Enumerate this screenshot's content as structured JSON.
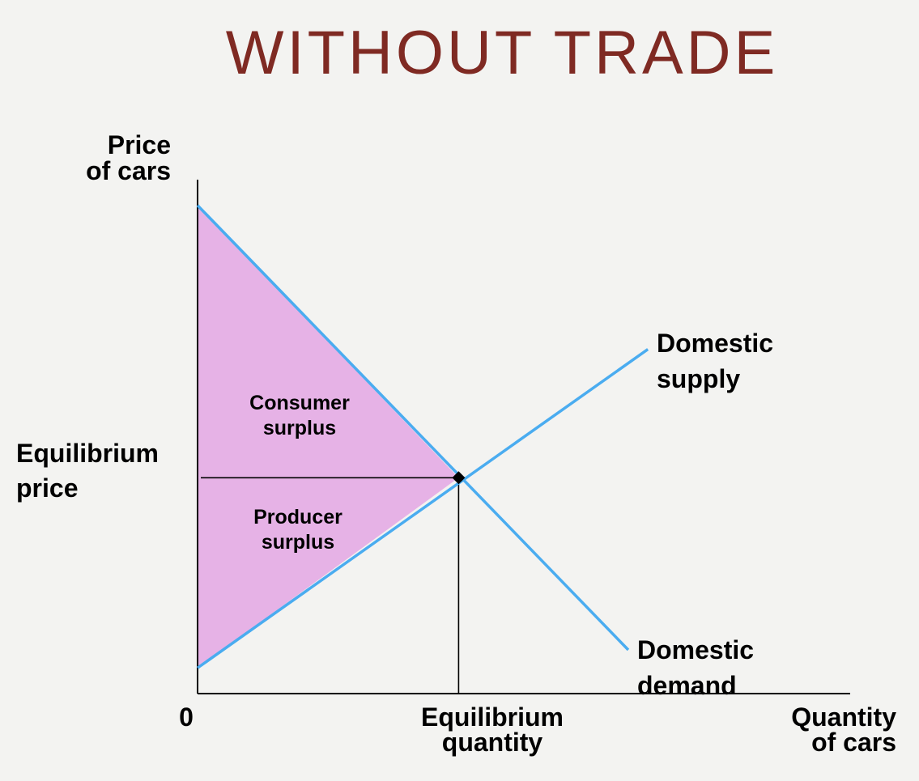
{
  "page": {
    "title": "WITHOUT TRADE",
    "title_color": "#7f2a23"
  },
  "chart_data": {
    "type": "area",
    "title": "WITHOUT TRADE",
    "ylabel": [
      "Price",
      "of cars"
    ],
    "xlabel": [
      "Quantity",
      "of cars"
    ],
    "origin_label": "0",
    "x_tick_label": [
      "Equilibrium",
      "quantity"
    ],
    "y_tick_label": [
      "Equilibrium",
      "price"
    ],
    "xlim": [
      0,
      10
    ],
    "ylim": [
      0,
      10
    ],
    "equilibrium": {
      "x": 4,
      "y": 4.2
    },
    "series": [
      {
        "name": [
          "Domestic",
          "supply"
        ],
        "x": [
          0,
          6.9
        ],
        "y": [
          0.5,
          6.7
        ],
        "color": "#4aacf0"
      },
      {
        "name": [
          "Domestic",
          "demand"
        ],
        "x": [
          0,
          6.6
        ],
        "y": [
          9.5,
          0.85
        ],
        "color": "#4aacf0"
      }
    ],
    "regions": [
      {
        "label": [
          "Consumer",
          "surplus"
        ],
        "color": "#e6b2e6"
      },
      {
        "label": [
          "Producer",
          "surplus"
        ],
        "color": "#e6b2e6"
      }
    ],
    "grid": false,
    "legend": "none"
  }
}
